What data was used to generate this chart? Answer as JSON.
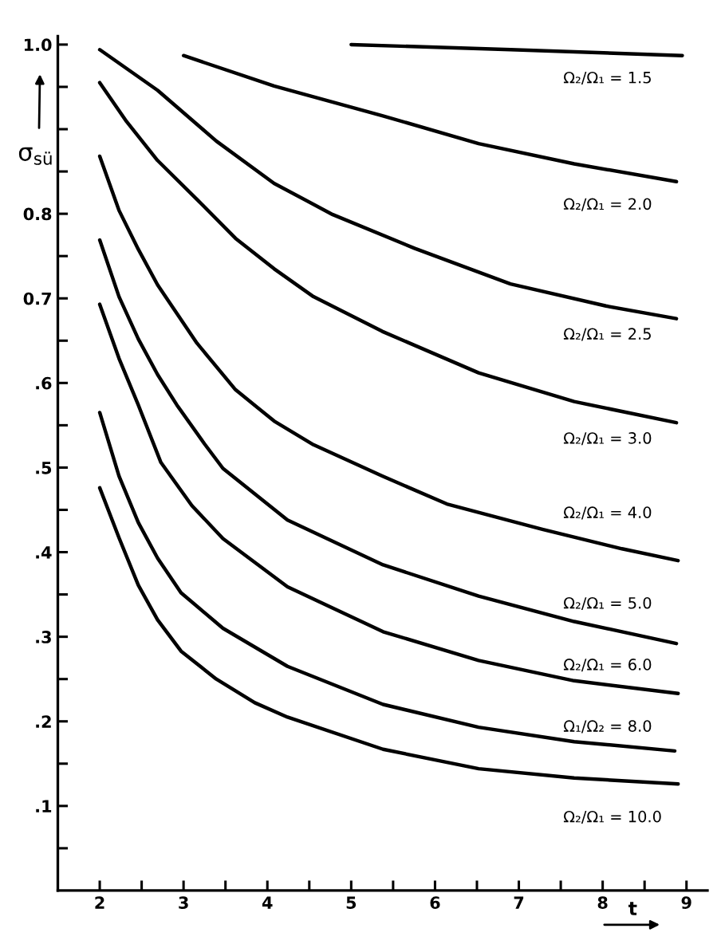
{
  "chart_data": {
    "type": "line",
    "xlabel": "t",
    "ylabel": "σ$_{sü}$",
    "xlim": [
      1.5,
      9.25
    ],
    "ylim": [
      0,
      1.01
    ],
    "xticks": [
      2,
      {
        "value": 2.5,
        "label": null
      },
      3,
      {
        "value": 3.5,
        "label": null
      },
      4,
      {
        "value": 4.5,
        "label": null
      },
      5,
      {
        "value": 5.5,
        "label": null
      },
      6,
      {
        "value": 6.5,
        "label": null
      },
      7,
      {
        "value": 7.5,
        "label": null
      },
      8,
      {
        "value": 8.5,
        "label": null
      },
      9
    ],
    "yticks": [
      {
        "value": 0.05,
        "label": null
      },
      {
        "value": 0.1,
        "label": ".1"
      },
      {
        "value": 0.15,
        "label": null
      },
      {
        "value": 0.2,
        "label": ".2"
      },
      {
        "value": 0.25,
        "label": null
      },
      {
        "value": 0.3,
        "label": ".3"
      },
      {
        "value": 0.35,
        "label": null
      },
      {
        "value": 0.4,
        "label": ".4"
      },
      {
        "value": 0.45,
        "label": null
      },
      {
        "value": 0.5,
        "label": ".5"
      },
      {
        "value": 0.55,
        "label": null
      },
      {
        "value": 0.6,
        "label": ".6"
      },
      {
        "value": 0.65,
        "label": null
      },
      {
        "value": 0.7,
        "label": "0.7"
      },
      {
        "value": 0.75,
        "label": null
      },
      {
        "value": 0.8,
        "label": "0.8"
      },
      {
        "value": 0.85,
        "label": null
      },
      {
        "value": 0.9,
        "label": null
      },
      {
        "value": 0.95,
        "label": null
      },
      {
        "value": 1.0,
        "label": "1.0"
      }
    ],
    "series": [
      {
        "name": "Ω₂/Ω₁ = 1.5",
        "color": "#000000",
        "x": [
          5.0,
          6.9,
          8.95
        ],
        "values": [
          1.0,
          0.994,
          0.987
        ]
      },
      {
        "name": "Ω₂/Ω₁ = 2.0",
        "color": "#000000",
        "x": [
          3.0,
          4.08,
          5.37,
          6.52,
          7.66,
          8.88
        ],
        "values": [
          0.987,
          0.951,
          0.916,
          0.883,
          0.859,
          0.838
        ]
      },
      {
        "name": "Ω₂/Ω₁ = 2.5",
        "color": "#000000",
        "x": [
          2.0,
          2.69,
          3.39,
          4.08,
          4.78,
          5.76,
          6.9,
          8.04,
          8.88
        ],
        "values": [
          0.994,
          0.946,
          0.886,
          0.836,
          0.799,
          0.759,
          0.717,
          0.691,
          0.676
        ]
      },
      {
        "name": "Ω₂/Ω₁ = 3.0",
        "color": "#000000",
        "x": [
          2.0,
          2.32,
          2.69,
          3.16,
          3.62,
          4.08,
          4.55,
          5.37,
          6.52,
          7.66,
          8.88
        ],
        "values": [
          0.955,
          0.909,
          0.863,
          0.817,
          0.771,
          0.735,
          0.702,
          0.661,
          0.612,
          0.578,
          0.553
        ]
      },
      {
        "name": "Ω₂/Ω₁ = 4.0",
        "color": "#000000",
        "x": [
          2.0,
          2.23,
          2.46,
          2.69,
          3.16,
          3.62,
          4.08,
          4.55,
          5.37,
          6.14,
          7.28,
          8.23,
          8.9
        ],
        "values": [
          0.868,
          0.804,
          0.758,
          0.716,
          0.647,
          0.592,
          0.555,
          0.527,
          0.49,
          0.457,
          0.427,
          0.404,
          0.39
        ]
      },
      {
        "name": "Ω₂/Ω₁ = 5.0",
        "color": "#000000",
        "x": [
          2.0,
          2.23,
          2.46,
          2.69,
          2.92,
          3.25,
          3.47,
          4.24,
          5.38,
          6.52,
          7.66,
          8.88
        ],
        "values": [
          0.769,
          0.702,
          0.652,
          0.61,
          0.574,
          0.528,
          0.499,
          0.438,
          0.385,
          0.348,
          0.318,
          0.292
        ]
      },
      {
        "name": "Ω₂/Ω₁ = 6.0",
        "color": "#000000",
        "x": [
          2.0,
          2.23,
          2.46,
          2.73,
          3.1,
          3.47,
          4.24,
          5.38,
          6.52,
          7.66,
          8.9
        ],
        "values": [
          0.693,
          0.629,
          0.574,
          0.506,
          0.455,
          0.416,
          0.359,
          0.306,
          0.272,
          0.248,
          0.233
        ]
      },
      {
        "name": "Ω₁/Ω₂ = 8.0",
        "color": "#000000",
        "x": [
          2.0,
          2.23,
          2.46,
          2.69,
          2.97,
          3.47,
          4.24,
          5.38,
          6.52,
          7.66,
          8.86
        ],
        "values": [
          0.565,
          0.49,
          0.435,
          0.393,
          0.352,
          0.31,
          0.265,
          0.22,
          0.193,
          0.176,
          0.165
        ]
      },
      {
        "name": "Ω₂/Ω₁ = 10.0",
        "color": "#000000",
        "x": [
          2.0,
          2.23,
          2.46,
          2.69,
          2.97,
          3.39,
          3.85,
          4.24,
          5.38,
          6.52,
          7.66,
          8.9
        ],
        "values": [
          0.476,
          0.417,
          0.361,
          0.32,
          0.283,
          0.25,
          0.222,
          0.205,
          0.167,
          0.144,
          0.133,
          0.126
        ]
      }
    ],
    "legend": false,
    "grid": false,
    "marker": "none",
    "line_style": "solid"
  }
}
